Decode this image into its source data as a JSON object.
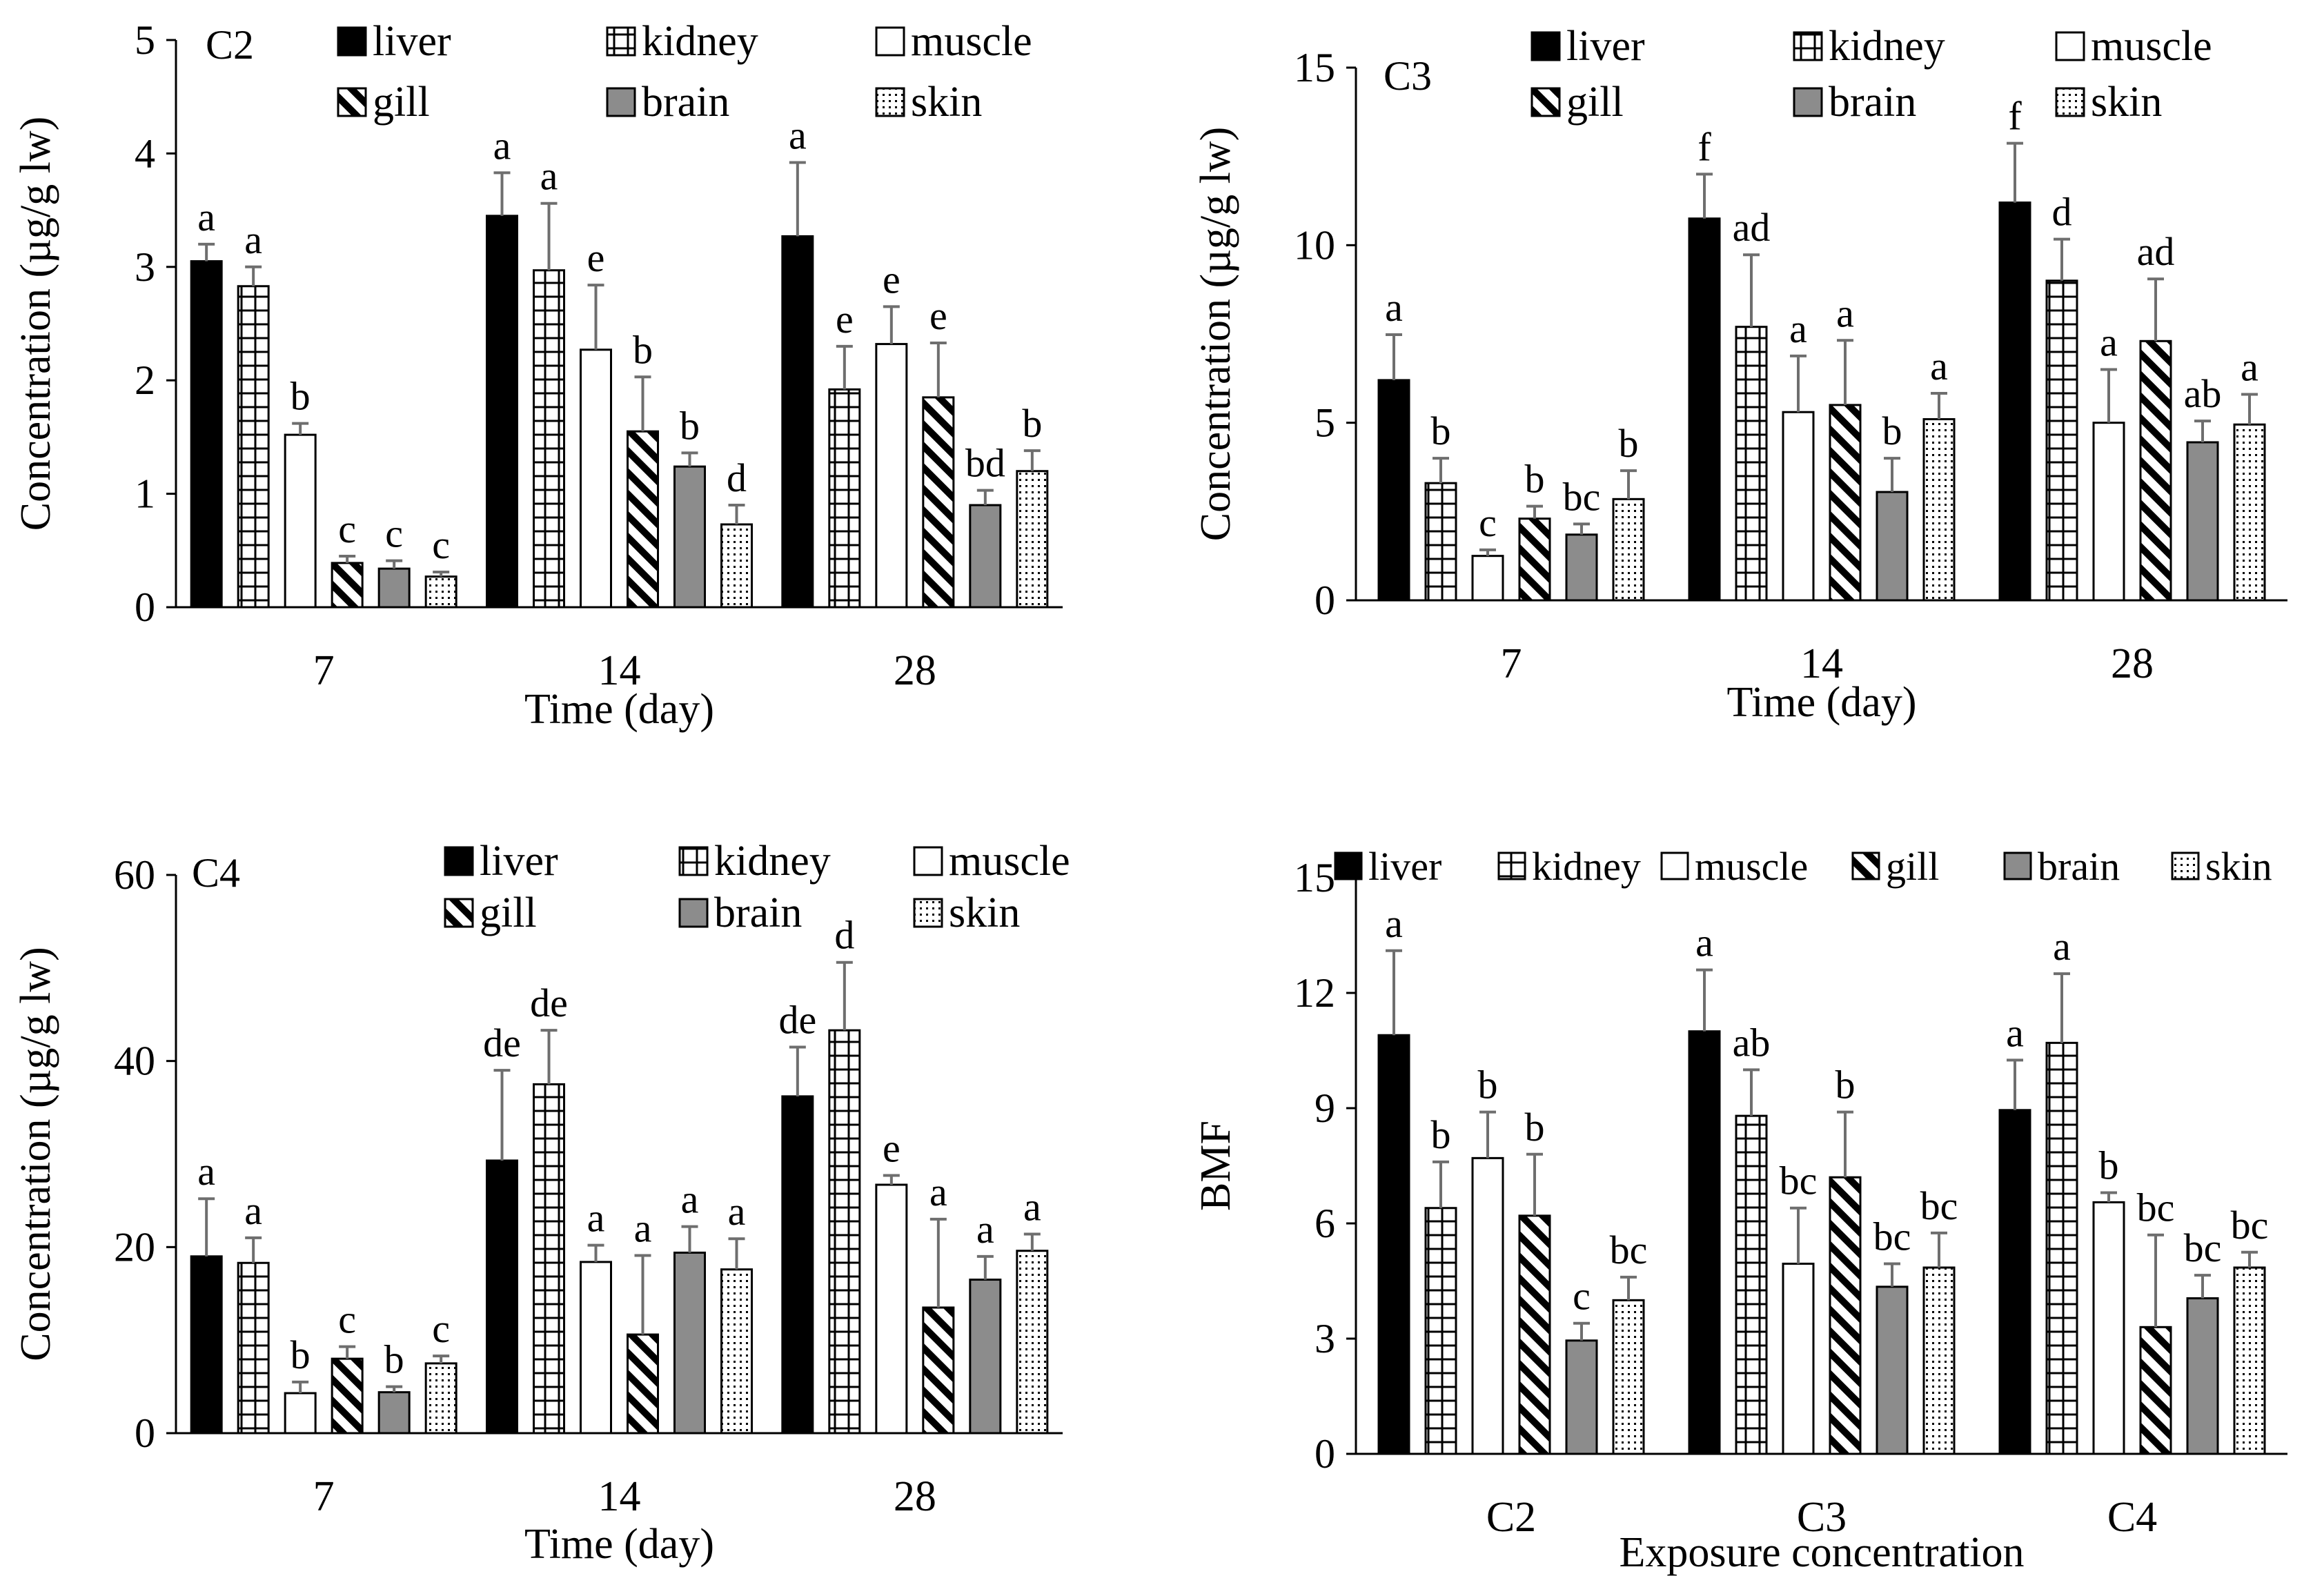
{
  "colors": {
    "liver": "#000000",
    "kidney": "#ffffff",
    "muscle": "#ffffff",
    "gill": "#ffffff",
    "brain": "#8c8c8c",
    "skin": "#ffffff",
    "axis": "#000000",
    "error": "#6e6e6e"
  },
  "chart_data": [
    {
      "type": "bar",
      "panel_label": "C2",
      "xlabel": "Time (day)",
      "ylabel": "Concentration (µg/g lw)",
      "ylim": [
        0,
        5
      ],
      "yticks": [
        "0",
        "1",
        "2",
        "3",
        "4",
        "5"
      ],
      "categories": [
        "7",
        "14",
        "28"
      ],
      "legend": [
        "liver",
        "kidney",
        "muscle",
        "gill",
        "brain",
        "skin"
      ],
      "legend_position": "top",
      "series": [
        {
          "name": "liver",
          "pattern": "solid-black",
          "values": [
            3.05,
            3.45,
            3.27
          ],
          "errors": [
            0.15,
            0.38,
            0.65
          ],
          "labels": [
            "a",
            "a",
            "a"
          ]
        },
        {
          "name": "kidney",
          "pattern": "grid",
          "values": [
            2.83,
            2.97,
            1.92
          ],
          "errors": [
            0.17,
            0.59,
            0.38
          ],
          "labels": [
            "a",
            "a",
            "e"
          ]
        },
        {
          "name": "muscle",
          "pattern": "white",
          "values": [
            1.52,
            2.27,
            2.32
          ],
          "errors": [
            0.1,
            0.57,
            0.33
          ],
          "labels": [
            "b",
            "e",
            "e"
          ]
        },
        {
          "name": "gill",
          "pattern": "diagonal",
          "values": [
            0.39,
            1.55,
            1.85
          ],
          "errors": [
            0.06,
            0.48,
            0.48
          ],
          "labels": [
            "c",
            "b",
            "e"
          ]
        },
        {
          "name": "brain",
          "pattern": "solid-gray",
          "values": [
            0.34,
            1.24,
            0.9
          ],
          "errors": [
            0.07,
            0.12,
            0.13
          ],
          "labels": [
            "c",
            "b",
            "bd"
          ]
        },
        {
          "name": "skin",
          "pattern": "dotted",
          "values": [
            0.27,
            0.73,
            1.2
          ],
          "errors": [
            0.04,
            0.17,
            0.18
          ],
          "labels": [
            "c",
            "d",
            "b"
          ]
        }
      ]
    },
    {
      "type": "bar",
      "panel_label": "C3",
      "xlabel": "Time (day)",
      "ylabel": "Concentration (µg/g lw)",
      "ylim": [
        0,
        15
      ],
      "yticks": [
        "0",
        "5",
        "10",
        "15"
      ],
      "categories": [
        "7",
        "14",
        "28"
      ],
      "legend": [
        "liver",
        "kidney",
        "muscle",
        "gill",
        "brain",
        "skin"
      ],
      "legend_position": "top",
      "series": [
        {
          "name": "liver",
          "pattern": "solid-black",
          "values": [
            6.2,
            10.75,
            11.2
          ],
          "errors": [
            1.28,
            1.25,
            1.67
          ],
          "labels": [
            "a",
            "f",
            "f"
          ]
        },
        {
          "name": "kidney",
          "pattern": "grid",
          "values": [
            3.3,
            7.7,
            9.0
          ],
          "errors": [
            0.7,
            2.03,
            1.17
          ],
          "labels": [
            "b",
            "ad",
            "d"
          ]
        },
        {
          "name": "muscle",
          "pattern": "white",
          "values": [
            1.25,
            5.3,
            5.0
          ],
          "errors": [
            0.17,
            1.58,
            1.5
          ],
          "labels": [
            "c",
            "a",
            "a"
          ]
        },
        {
          "name": "gill",
          "pattern": "diagonal",
          "values": [
            2.3,
            5.5,
            7.3
          ],
          "errors": [
            0.35,
            1.82,
            1.75
          ],
          "labels": [
            "b",
            "a",
            "ad"
          ]
        },
        {
          "name": "brain",
          "pattern": "solid-gray",
          "values": [
            1.85,
            3.05,
            4.45
          ],
          "errors": [
            0.3,
            0.95,
            0.6
          ],
          "labels": [
            "bc",
            "b",
            "ab"
          ]
        },
        {
          "name": "skin",
          "pattern": "dotted",
          "values": [
            2.85,
            5.1,
            4.95
          ],
          "errors": [
            0.8,
            0.73,
            0.85
          ],
          "labels": [
            "b",
            "a",
            "a"
          ]
        }
      ]
    },
    {
      "type": "bar",
      "panel_label": "C4",
      "xlabel": "Time (day)",
      "ylabel": "Concentration (µg/g lw)",
      "ylim": [
        0,
        60
      ],
      "yticks": [
        "0",
        "20",
        "40",
        "60"
      ],
      "categories": [
        "7",
        "14",
        "28"
      ],
      "legend": [
        "liver",
        "kidney",
        "muscle",
        "gill",
        "brain",
        "skin"
      ],
      "legend_position": "top",
      "series": [
        {
          "name": "liver",
          "pattern": "solid-black",
          "values": [
            19.0,
            29.3,
            36.2
          ],
          "errors": [
            6.2,
            9.7,
            5.3
          ],
          "labels": [
            "a",
            "de",
            "de"
          ]
        },
        {
          "name": "kidney",
          "pattern": "grid",
          "values": [
            18.3,
            37.5,
            43.3
          ],
          "errors": [
            2.7,
            5.8,
            7.3
          ],
          "labels": [
            "a",
            "de",
            "d"
          ]
        },
        {
          "name": "muscle",
          "pattern": "white",
          "values": [
            4.3,
            18.4,
            26.7
          ],
          "errors": [
            1.2,
            1.8,
            1.0
          ],
          "labels": [
            "b",
            "a",
            "e"
          ]
        },
        {
          "name": "gill",
          "pattern": "diagonal",
          "values": [
            8.0,
            10.6,
            13.5
          ],
          "errors": [
            1.3,
            8.5,
            9.5
          ],
          "labels": [
            "c",
            "a",
            "a"
          ]
        },
        {
          "name": "brain",
          "pattern": "solid-gray",
          "values": [
            4.4,
            19.4,
            16.5
          ],
          "errors": [
            0.6,
            2.8,
            2.5
          ],
          "labels": [
            "b",
            "a",
            "a"
          ]
        },
        {
          "name": "skin",
          "pattern": "dotted",
          "values": [
            7.5,
            17.6,
            19.6
          ],
          "errors": [
            0.8,
            3.3,
            1.8
          ],
          "labels": [
            "c",
            "a",
            "a"
          ]
        }
      ]
    },
    {
      "type": "bar",
      "panel_label": "",
      "xlabel": "Exposure concentration",
      "ylabel": "BMF",
      "ylim": [
        0,
        15
      ],
      "yticks": [
        "0",
        "3",
        "6",
        "9",
        "12",
        "15"
      ],
      "categories": [
        "C2",
        "C3",
        "C4"
      ],
      "legend": [
        "liver",
        "kidney",
        "muscle",
        "gill",
        "brain",
        "skin"
      ],
      "legend_position": "top",
      "series": [
        {
          "name": "liver",
          "pattern": "solid-black",
          "values": [
            10.9,
            11.0,
            8.95
          ],
          "errors": [
            2.2,
            1.6,
            1.3
          ],
          "labels": [
            "a",
            "a",
            "a"
          ]
        },
        {
          "name": "kidney",
          "pattern": "grid",
          "values": [
            6.4,
            8.8,
            10.7
          ],
          "errors": [
            1.2,
            1.2,
            1.8
          ],
          "labels": [
            "b",
            "ab",
            "a"
          ]
        },
        {
          "name": "muscle",
          "pattern": "white",
          "values": [
            7.7,
            4.95,
            6.55
          ],
          "errors": [
            1.2,
            1.45,
            0.25
          ],
          "labels": [
            "b",
            "bc",
            "b"
          ]
        },
        {
          "name": "gill",
          "pattern": "diagonal",
          "values": [
            6.2,
            7.2,
            3.3
          ],
          "errors": [
            1.6,
            1.7,
            2.4
          ],
          "labels": [
            "b",
            "b",
            "bc"
          ]
        },
        {
          "name": "brain",
          "pattern": "solid-gray",
          "values": [
            2.95,
            4.35,
            4.05
          ],
          "errors": [
            0.45,
            0.6,
            0.6
          ],
          "labels": [
            "c",
            "bc",
            "bc"
          ]
        },
        {
          "name": "skin",
          "pattern": "dotted",
          "values": [
            4.0,
            4.85,
            4.85
          ],
          "errors": [
            0.6,
            0.9,
            0.4
          ],
          "labels": [
            "bc",
            "bc",
            "bc"
          ]
        }
      ]
    }
  ]
}
